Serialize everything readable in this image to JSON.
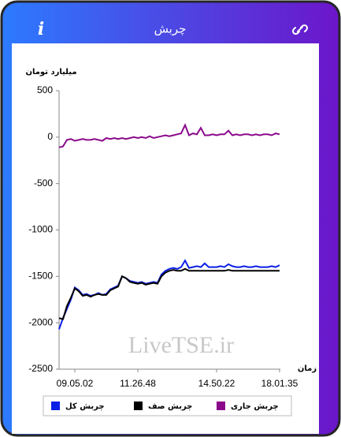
{
  "header": {
    "title": "چربش",
    "info_icon": "i"
  },
  "watermark": "LiveTSE.ir",
  "chart_data": {
    "type": "line",
    "y_label": "میلیارد تومان",
    "x_label": "زمان",
    "categories": [
      null,
      null,
      null,
      null,
      "09.05.02",
      null,
      null,
      null,
      null,
      null,
      null,
      null,
      null,
      null,
      null,
      null,
      null,
      null,
      null,
      null,
      "11.26.48",
      null,
      null,
      null,
      null,
      null,
      null,
      null,
      null,
      null,
      null,
      null,
      null,
      null,
      null,
      null,
      null,
      null,
      null,
      null,
      "14.50.22",
      null,
      null,
      null,
      null,
      null,
      null,
      null,
      null,
      null,
      null,
      null,
      null,
      null,
      null,
      null,
      "18.01.35"
    ],
    "ylim": [
      -2500,
      500
    ],
    "yticks": [
      500,
      0,
      -500,
      -1000,
      -1500,
      -2000,
      -2500
    ],
    "series": [
      {
        "name": "چربش کل",
        "color": "#0a1fe6",
        "values": [
          -2070,
          -1950,
          -1850,
          -1750,
          -1620,
          -1650,
          -1700,
          -1690,
          -1710,
          -1700,
          -1680,
          -1700,
          -1690,
          -1640,
          -1620,
          -1600,
          -1500,
          -1520,
          -1550,
          -1560,
          -1570,
          -1560,
          -1580,
          -1570,
          -1560,
          -1570,
          -1480,
          -1440,
          -1420,
          -1410,
          -1420,
          -1400,
          -1330,
          -1410,
          -1400,
          -1390,
          -1400,
          -1360,
          -1400,
          -1400,
          -1400,
          -1390,
          -1400,
          -1370,
          -1390,
          -1400,
          -1400,
          -1390,
          -1400,
          -1400,
          -1390,
          -1400,
          -1400,
          -1400,
          -1390,
          -1400,
          -1380
        ]
      },
      {
        "name": "چربش صف",
        "color": "#000000",
        "values": [
          -1950,
          -1960,
          -1820,
          -1730,
          -1630,
          -1660,
          -1710,
          -1700,
          -1720,
          -1700,
          -1690,
          -1700,
          -1700,
          -1650,
          -1630,
          -1610,
          -1500,
          -1520,
          -1560,
          -1570,
          -1580,
          -1570,
          -1590,
          -1580,
          -1570,
          -1580,
          -1500,
          -1460,
          -1440,
          -1430,
          -1440,
          -1440,
          -1420,
          -1440,
          -1440,
          -1440,
          -1440,
          -1440,
          -1440,
          -1440,
          -1440,
          -1440,
          -1440,
          -1430,
          -1440,
          -1440,
          -1440,
          -1440,
          -1440,
          -1440,
          -1440,
          -1440,
          -1440,
          -1440,
          -1440,
          -1440,
          -1440
        ]
      },
      {
        "name": "چربش جاری",
        "color": "#8b0a8b",
        "values": [
          -110,
          -100,
          -30,
          -20,
          -40,
          -30,
          -20,
          -30,
          -30,
          -20,
          -30,
          -40,
          -10,
          -20,
          -10,
          -20,
          -10,
          -20,
          -10,
          0,
          -10,
          0,
          -10,
          10,
          -10,
          0,
          10,
          20,
          10,
          20,
          30,
          40,
          130,
          20,
          40,
          30,
          100,
          20,
          20,
          30,
          20,
          30,
          30,
          70,
          20,
          30,
          20,
          30,
          30,
          20,
          30,
          20,
          30,
          30,
          20,
          40,
          30
        ]
      }
    ]
  }
}
